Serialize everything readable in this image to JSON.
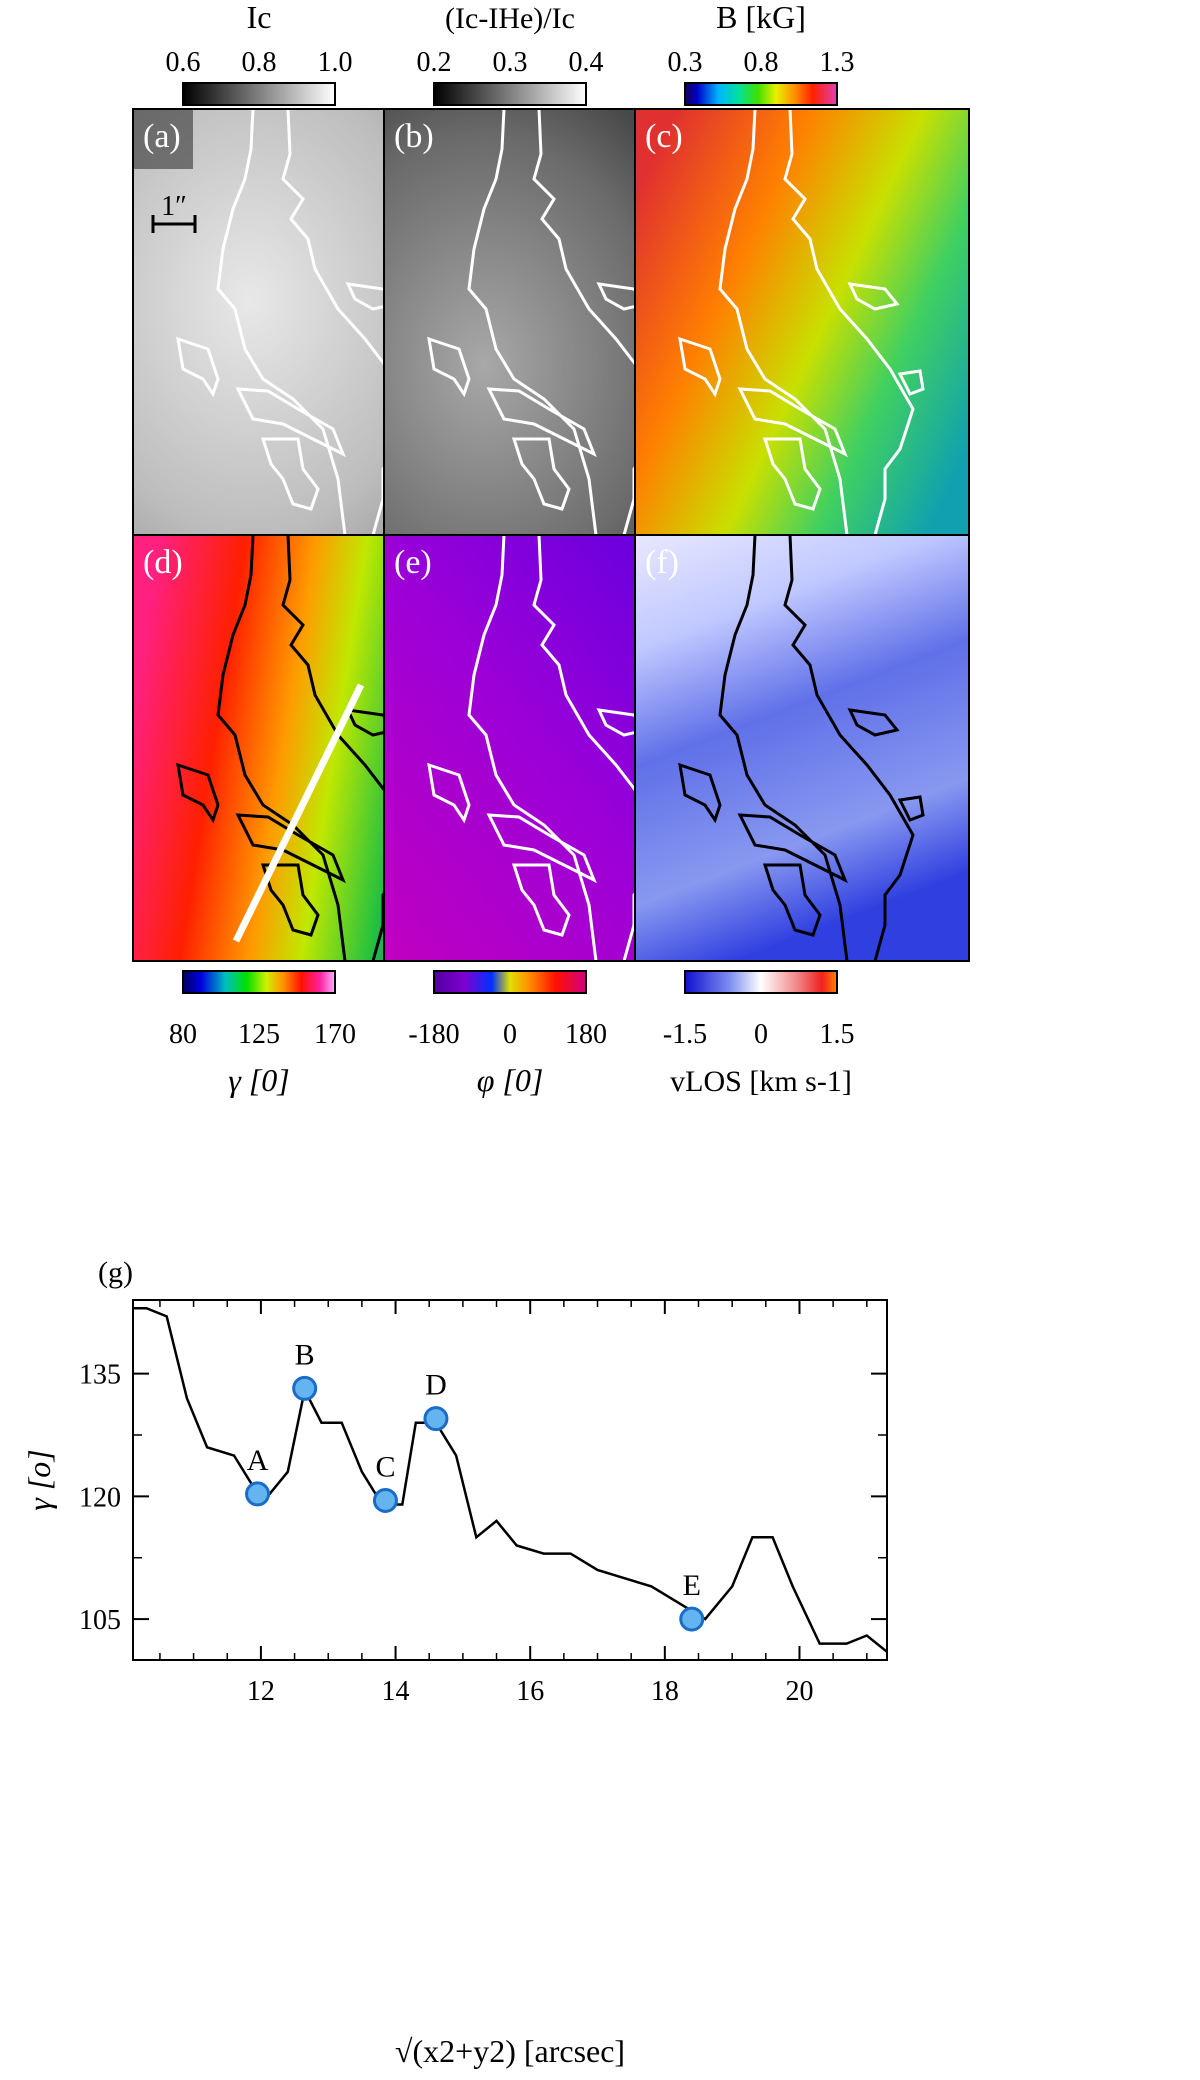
{
  "colorbars_top": [
    {
      "title": "Ic",
      "ticks": [
        "0.6",
        "0.8",
        "1.0"
      ]
    },
    {
      "title": "(Ic-IHe)/Ic",
      "ticks": [
        "0.2",
        "0.3",
        "0.4"
      ]
    },
    {
      "title": "B [kG]",
      "ticks": [
        "0.3",
        "0.8",
        "1.3"
      ]
    }
  ],
  "colorbars_bottom": [
    {
      "title": "γ [0]",
      "ticks": [
        "80",
        "125",
        "170"
      ]
    },
    {
      "title": "φ [0]",
      "ticks": [
        "-180",
        "0",
        "180"
      ]
    },
    {
      "title": "vLOS [km s-1]",
      "ticks": [
        "-1.5",
        "0",
        "1.5"
      ]
    }
  ],
  "panels": {
    "a": "(a)",
    "b": "(b)",
    "c": "(c)",
    "d": "(d)",
    "e": "(e)",
    "f": "(f)"
  },
  "scale_bar": "1″",
  "colors": {
    "map_contour_light": "#ffffff",
    "map_contour_dark": "#000000",
    "marker_fill": "#64b4f0",
    "marker_stroke": "#1a6cc8"
  },
  "chart_data": {
    "type": "line",
    "panel_label": "(g)",
    "xlabel": "√(x2+y2) [arcsec]",
    "ylabel": "γ [o]",
    "xlim": [
      10.1,
      21.3
    ],
    "ylim": [
      100,
      144
    ],
    "xticks": [
      12,
      14,
      16,
      18,
      20
    ],
    "yticks": [
      105,
      120,
      135
    ],
    "x": [
      10.1,
      10.3,
      10.6,
      10.9,
      11.2,
      11.6,
      11.9,
      12.1,
      12.4,
      12.65,
      12.9,
      13.2,
      13.5,
      13.8,
      14.1,
      14.3,
      14.6,
      14.9,
      15.2,
      15.5,
      15.8,
      16.2,
      16.6,
      17.0,
      17.4,
      17.8,
      18.2,
      18.4,
      18.6,
      19.0,
      19.3,
      19.6,
      19.9,
      20.3,
      20.7,
      21.0,
      21.3
    ],
    "y": [
      143,
      143,
      142,
      132,
      126,
      125,
      121,
      120,
      123,
      133,
      129,
      129,
      123,
      119,
      119,
      129,
      129,
      125,
      115,
      117,
      114,
      113,
      113,
      111,
      110,
      109,
      107,
      106,
      105,
      109,
      115,
      115,
      109,
      102,
      102,
      103,
      101
    ],
    "points": [
      {
        "label": "A",
        "x": 11.95,
        "y": 120.3
      },
      {
        "label": "B",
        "x": 12.65,
        "y": 133.2
      },
      {
        "label": "C",
        "x": 13.85,
        "y": 119.5
      },
      {
        "label": "D",
        "x": 14.6,
        "y": 129.5
      },
      {
        "label": "E",
        "x": 18.4,
        "y": 105.0
      }
    ]
  }
}
